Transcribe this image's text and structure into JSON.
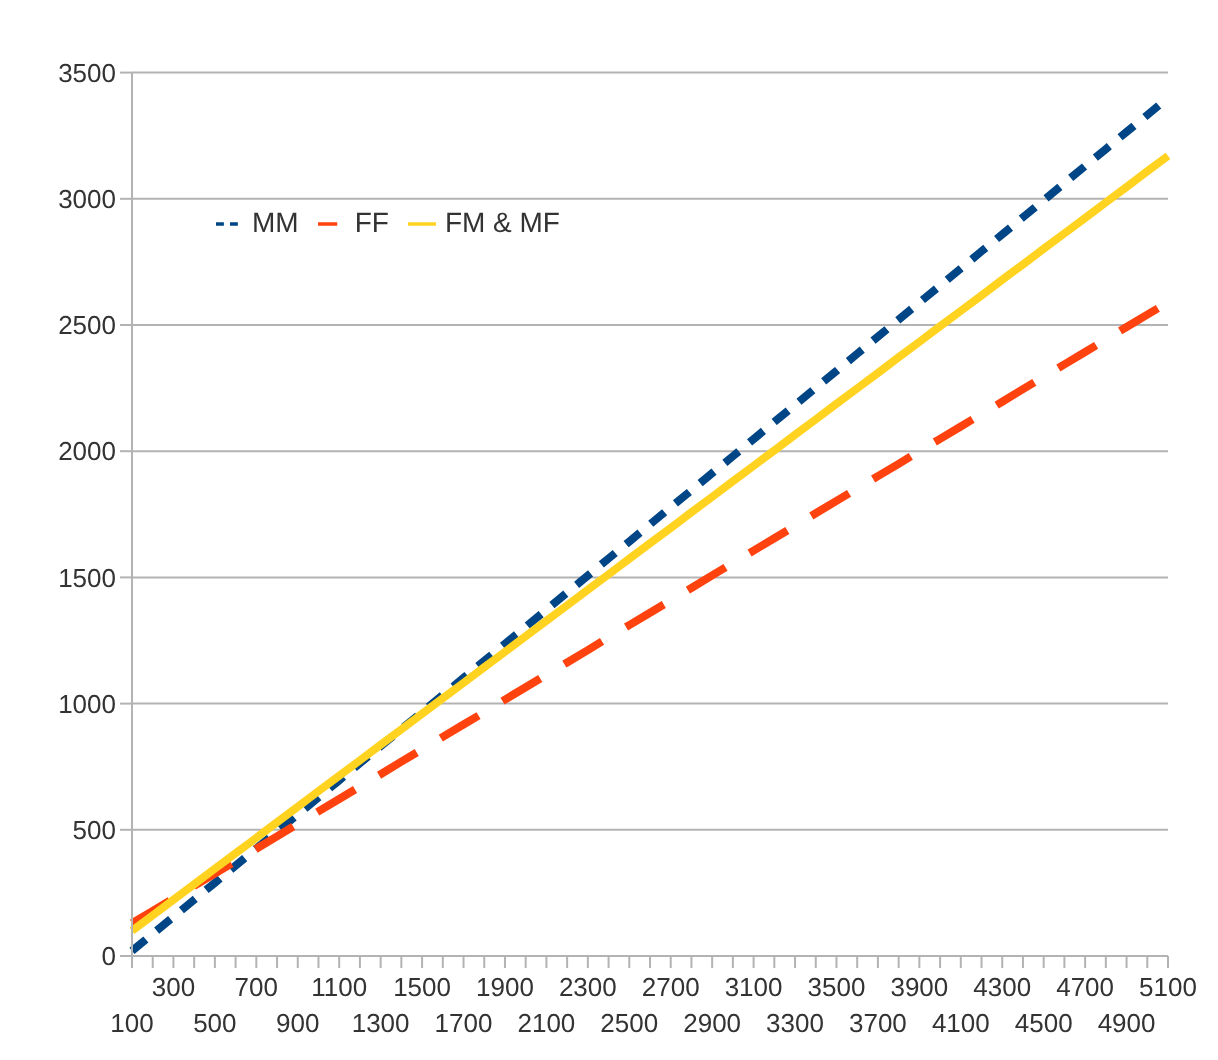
{
  "chart_data": {
    "type": "line",
    "categories": [
      "100",
      null,
      "300",
      null,
      "500",
      null,
      "700",
      null,
      "900",
      null,
      "1100",
      null,
      "1300",
      null,
      "1500",
      null,
      "1700",
      null,
      "1900",
      null,
      "2100",
      null,
      "2300",
      null,
      "2500",
      null,
      "2700",
      null,
      "2900",
      null,
      "3100",
      null,
      "3300",
      null,
      "3500",
      null,
      "3700",
      null,
      "3900",
      null,
      "4100",
      null,
      "4300",
      null,
      "4500",
      null,
      "4700",
      null,
      "4900",
      null,
      "5100"
    ],
    "series": [
      {
        "name": "MM",
        "color": "#004586",
        "line_style": "dotted",
        "values": [
          20,
          88,
          155,
          223,
          290,
          358,
          426,
          493,
          561,
          628,
          696,
          764,
          831,
          899,
          966,
          1034,
          1102,
          1169,
          1237,
          1304,
          1372,
          1440,
          1507,
          1575,
          1642,
          1710,
          1778,
          1845,
          1913,
          1980,
          2048,
          2116,
          2183,
          2251,
          2318,
          2386,
          2454,
          2521,
          2589,
          2656,
          2724,
          2792,
          2859,
          2927,
          2994,
          3062,
          3130,
          3197,
          3265,
          3332,
          3400
        ]
      },
      {
        "name": "FF",
        "color": "#ff420e",
        "line_style": "dashed",
        "values": [
          130,
          179,
          228,
          278,
          327,
          376,
          425,
          474,
          524,
          573,
          622,
          671,
          720,
          770,
          819,
          868,
          917,
          966,
          1016,
          1065,
          1114,
          1163,
          1212,
          1262,
          1311,
          1360,
          1409,
          1458,
          1508,
          1557,
          1606,
          1655,
          1704,
          1754,
          1803,
          1852,
          1901,
          1950,
          2000,
          2049,
          2098,
          2147,
          2196,
          2246,
          2295,
          2344,
          2393,
          2442,
          2492,
          2541,
          2590
        ]
      },
      {
        "name": "FM & MF",
        "color": "#ffd320",
        "line_style": "solid",
        "values": [
          100,
          161,
          223,
          284,
          346,
          407,
          468,
          530,
          591,
          653,
          714,
          775,
          837,
          898,
          960,
          1021,
          1082,
          1144,
          1205,
          1267,
          1328,
          1389,
          1451,
          1512,
          1574,
          1635,
          1696,
          1758,
          1819,
          1881,
          1942,
          2003,
          2065,
          2126,
          2188,
          2249,
          2310,
          2372,
          2433,
          2495,
          2556,
          2617,
          2679,
          2740,
          2802,
          2863,
          2924,
          2986,
          3047,
          3109,
          3170
        ]
      }
    ],
    "ylim": [
      0,
      3500
    ],
    "yticks": [
      0,
      500,
      1000,
      1500,
      2000,
      2500,
      3000,
      3500
    ],
    "grid": "y",
    "legend": "top left",
    "marker": "none"
  }
}
